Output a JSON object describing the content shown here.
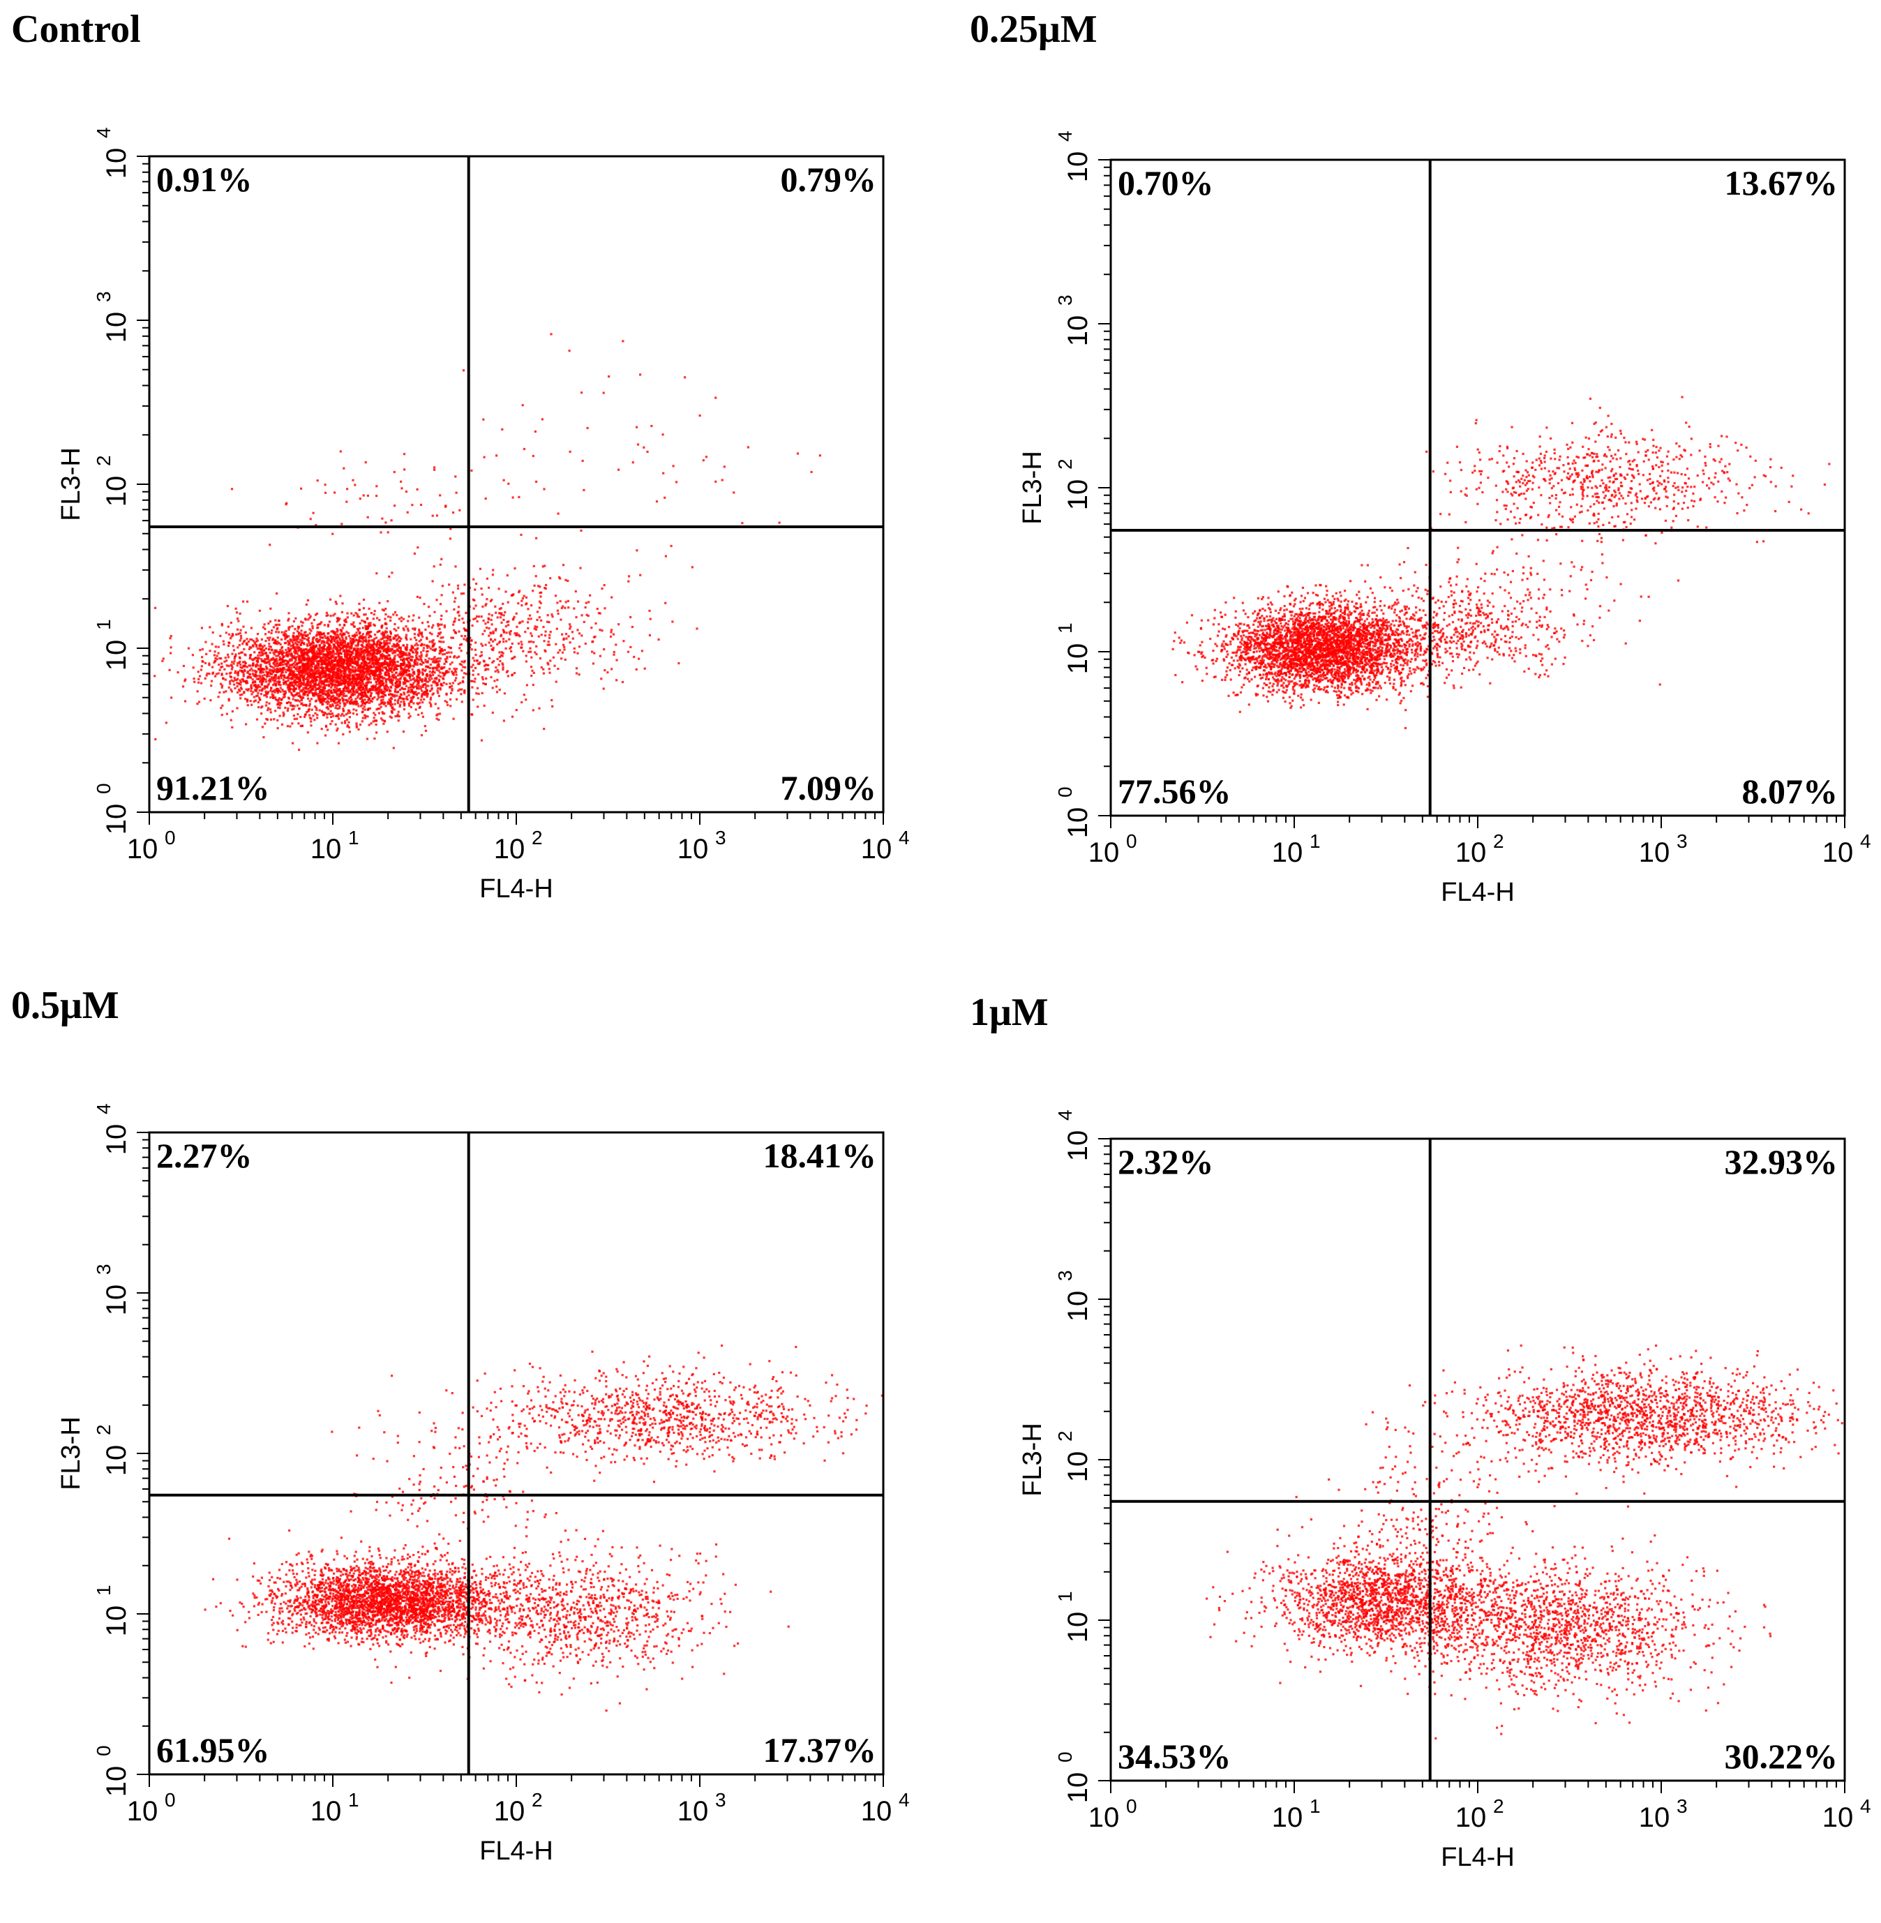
{
  "chart_data": [
    {
      "type": "scatter",
      "title": "Control",
      "xlabel": "FL4-H",
      "ylabel": "FL3-H",
      "xscale": "log",
      "yscale": "log",
      "xlim": [
        1,
        10000
      ],
      "ylim": [
        1,
        10000
      ],
      "xticks": [
        "10",
        "10",
        "10",
        "10",
        "10"
      ],
      "xtick_exponents": [
        "0",
        "1",
        "2",
        "3",
        "4"
      ],
      "yticks": [
        "10",
        "10",
        "10",
        "10",
        "10"
      ],
      "ytick_exponents": [
        "0",
        "1",
        "2",
        "3",
        "4"
      ],
      "quadrant_gate": {
        "x": 55,
        "y": 55
      },
      "quadrant_percentages": {
        "upper_left": "0.91%",
        "upper_right": "0.79%",
        "lower_left": "91.21%",
        "lower_right": "7.09%"
      },
      "point_color": "#ff0000",
      "clusters": [
        {
          "cx": 11,
          "cy": 7.5,
          "sx": 0.32,
          "sy": 0.14,
          "n": 4500
        },
        {
          "cx": 90,
          "cy": 13,
          "sx": 0.35,
          "sy": 0.18,
          "n": 500
        },
        {
          "cx": 20,
          "cy": 85,
          "sx": 0.35,
          "sy": 0.15,
          "n": 60
        },
        {
          "cx": 300,
          "cy": 150,
          "sx": 0.45,
          "sy": 0.3,
          "n": 60
        }
      ],
      "grid": false
    },
    {
      "type": "scatter",
      "title": "0.25μM",
      "xlabel": "FL4-H",
      "ylabel": "FL3-H",
      "xscale": "log",
      "yscale": "log",
      "xlim": [
        1,
        10000
      ],
      "ylim": [
        1,
        10000
      ],
      "xticks": [
        "10",
        "10",
        "10",
        "10",
        "10"
      ],
      "xtick_exponents": [
        "0",
        "1",
        "2",
        "3",
        "4"
      ],
      "yticks": [
        "10",
        "10",
        "10",
        "10",
        "10"
      ],
      "ytick_exponents": [
        "0",
        "1",
        "2",
        "3",
        "4"
      ],
      "quadrant_gate": {
        "x": 55,
        "y": 55
      },
      "quadrant_percentages": {
        "upper_left": "0.70%",
        "upper_right": "13.67%",
        "lower_left": "77.56%",
        "lower_right": "8.07%"
      },
      "point_color": "#ff0000",
      "clusters": [
        {
          "cx": 14,
          "cy": 10.5,
          "sx": 0.26,
          "sy": 0.13,
          "n": 3500
        },
        {
          "cx": 90,
          "cy": 14,
          "sx": 0.3,
          "sy": 0.15,
          "n": 500
        },
        {
          "cx": 500,
          "cy": 110,
          "sx": 0.4,
          "sy": 0.15,
          "n": 650
        },
        {
          "cx": 200,
          "cy": 30,
          "sx": 0.35,
          "sy": 0.2,
          "n": 80
        }
      ],
      "grid": false
    },
    {
      "type": "scatter",
      "title": "0.5μM",
      "xlabel": "FL4-H",
      "ylabel": "FL3-H",
      "xscale": "log",
      "yscale": "log",
      "xlim": [
        1,
        10000
      ],
      "ylim": [
        1,
        10000
      ],
      "xticks": [
        "10",
        "10",
        "10",
        "10",
        "10"
      ],
      "xtick_exponents": [
        "0",
        "1",
        "2",
        "3",
        "4"
      ],
      "yticks": [
        "10",
        "10",
        "10",
        "10",
        "10"
      ],
      "ytick_exponents": [
        "0",
        "1",
        "2",
        "3",
        "4"
      ],
      "quadrant_gate": {
        "x": 55,
        "y": 55
      },
      "quadrant_percentages": {
        "upper_left": "2.27%",
        "upper_right": "18.41%",
        "lower_left": "61.95%",
        "lower_right": "17.37%"
      },
      "point_color": "#ff0000",
      "clusters": [
        {
          "cx": 20,
          "cy": 12,
          "sx": 0.3,
          "sy": 0.12,
          "n": 3000
        },
        {
          "cx": 220,
          "cy": 10,
          "sx": 0.35,
          "sy": 0.18,
          "n": 900
        },
        {
          "cx": 600,
          "cy": 170,
          "sx": 0.45,
          "sy": 0.14,
          "n": 950
        },
        {
          "cx": 45,
          "cy": 60,
          "sx": 0.3,
          "sy": 0.2,
          "n": 150
        }
      ],
      "grid": false
    },
    {
      "type": "scatter",
      "title": "1μM",
      "xlabel": "FL4-H",
      "ylabel": "FL3-H",
      "xscale": "log",
      "yscale": "log",
      "xlim": [
        1,
        10000
      ],
      "ylim": [
        1,
        10000
      ],
      "xticks": [
        "10",
        "10",
        "10",
        "10",
        "10"
      ],
      "xtick_exponents": [
        "0",
        "1",
        "2",
        "3",
        "4"
      ],
      "yticks": [
        "10",
        "10",
        "10",
        "10",
        "10"
      ],
      "ytick_exponents": [
        "0",
        "1",
        "2",
        "3",
        "4"
      ],
      "quadrant_gate": {
        "x": 55,
        "y": 55
      },
      "quadrant_percentages": {
        "upper_left": "2.32%",
        "upper_right": "32.93%",
        "lower_left": "34.53%",
        "lower_right": "30.22%"
      },
      "point_color": "#ff0000",
      "clusters": [
        {
          "cx": 30,
          "cy": 13,
          "sx": 0.3,
          "sy": 0.15,
          "n": 1700
        },
        {
          "cx": 280,
          "cy": 9,
          "sx": 0.38,
          "sy": 0.2,
          "n": 1500
        },
        {
          "cx": 800,
          "cy": 190,
          "sx": 0.45,
          "sy": 0.15,
          "n": 1600
        },
        {
          "cx": 55,
          "cy": 50,
          "sx": 0.25,
          "sy": 0.25,
          "n": 200
        }
      ],
      "grid": false
    }
  ]
}
